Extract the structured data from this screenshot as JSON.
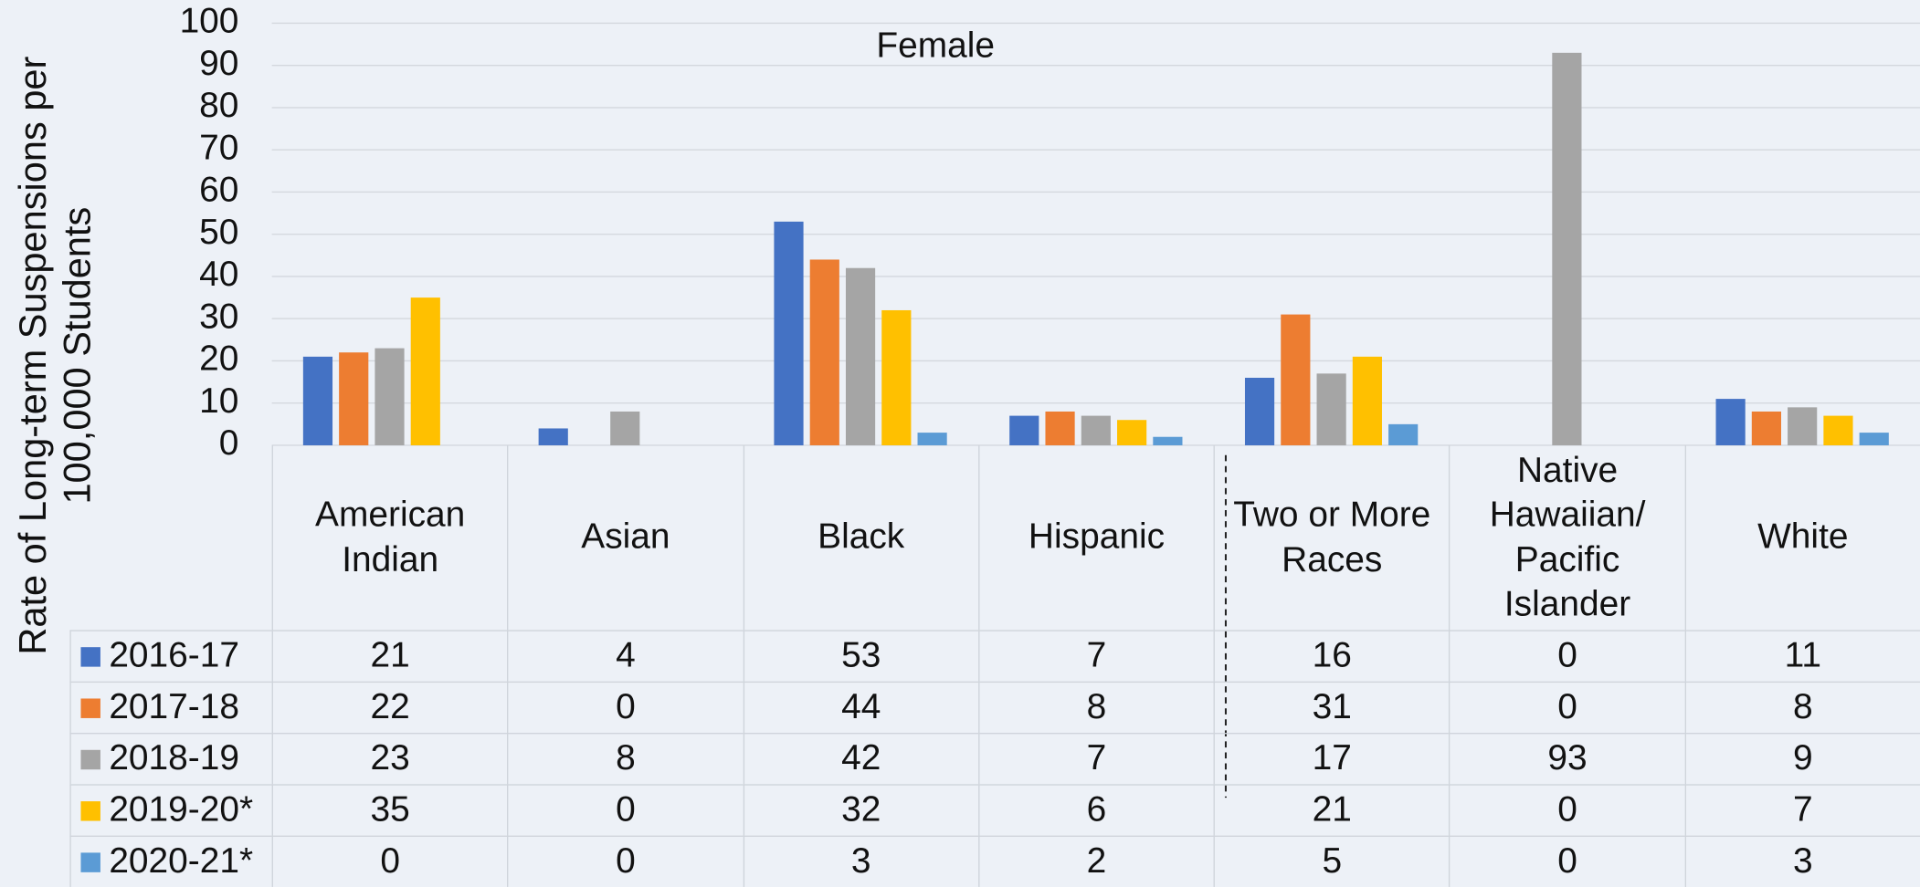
{
  "chart_data": {
    "type": "bar",
    "title": "Female",
    "y_label": "Rate of Long-term Suspensions per 100,000 Students",
    "categories": [
      "American Indian",
      "Asian",
      "Black",
      "Hispanic",
      "Two or More Races",
      "Native Hawaiian/ Pacific Islander",
      "White"
    ],
    "series": [
      {
        "name": "2016-17",
        "color": "#4472c4",
        "values": [
          21,
          4,
          53,
          7,
          16,
          0,
          11
        ]
      },
      {
        "name": "2017-18",
        "color": "#ed7d31",
        "values": [
          22,
          0,
          44,
          8,
          31,
          0,
          8
        ]
      },
      {
        "name": "2018-19",
        "color": "#a5a5a5",
        "values": [
          23,
          8,
          42,
          7,
          17,
          93,
          9
        ]
      },
      {
        "name": "2019-20*",
        "color": "#ffc000",
        "values": [
          35,
          0,
          32,
          6,
          21,
          0,
          7
        ]
      },
      {
        "name": "2020-21*",
        "color": "#5b9bd5",
        "values": [
          0,
          0,
          3,
          2,
          5,
          0,
          3
        ]
      }
    ],
    "ylim": [
      0,
      100
    ],
    "yticks": [
      0,
      10,
      20,
      30,
      40,
      50,
      60,
      70,
      80,
      90,
      100
    ],
    "grid": true
  }
}
